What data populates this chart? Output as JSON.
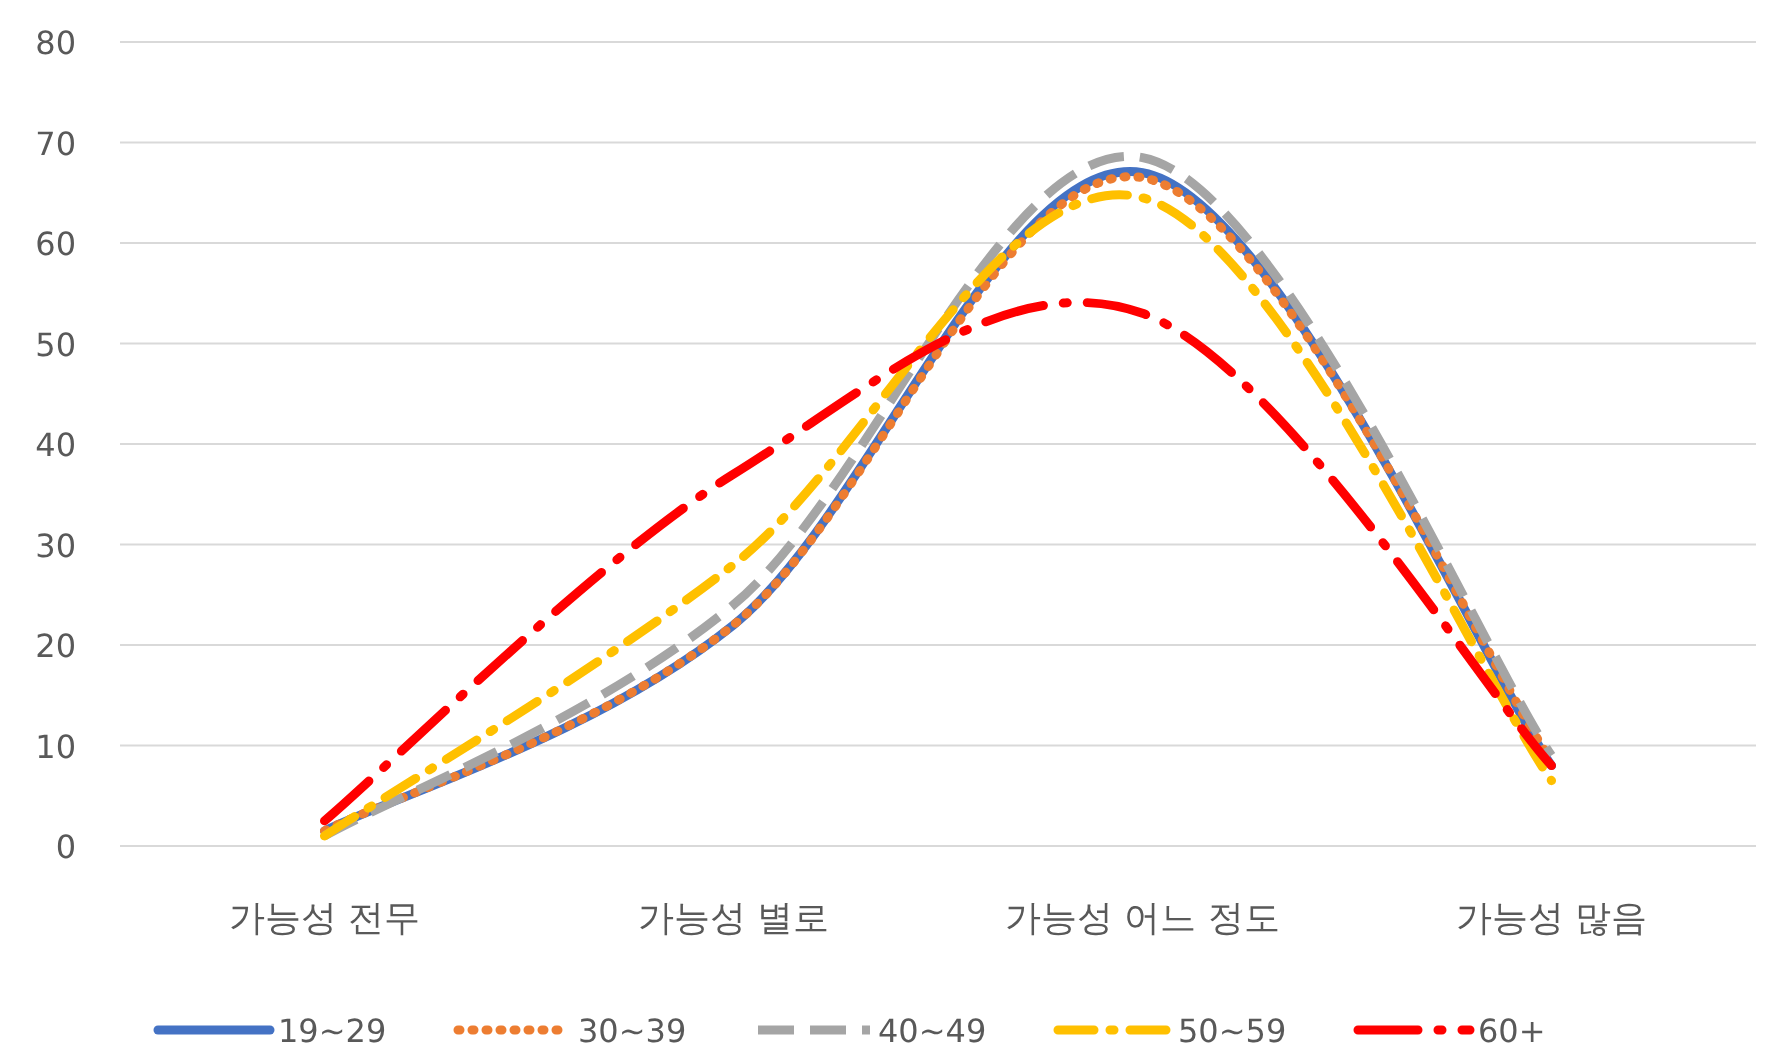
{
  "chart_data": {
    "type": "line",
    "categories": [
      "가능성 전무",
      "가능성 별로",
      "가능성 어느 정도",
      "가능성 많음"
    ],
    "series": [
      {
        "name": "19~29",
        "color": "#4472c4",
        "line_style": "solid",
        "values": [
          1.5,
          22,
          67,
          8
        ]
      },
      {
        "name": "30~39",
        "color": "#ed7d31",
        "line_style": "dotted",
        "values": [
          1.5,
          22,
          66.5,
          8.5
        ]
      },
      {
        "name": "40~49",
        "color": "#a5a5a5",
        "line_style": "dashed",
        "values": [
          1,
          24,
          68.5,
          9
        ]
      },
      {
        "name": "50~59",
        "color": "#ffc000",
        "line_style": "dashdot",
        "values": [
          1,
          28,
          64.5,
          6.5
        ]
      },
      {
        "name": "60+",
        "color": "#ff0000",
        "line_style": "longdashdot",
        "values": [
          2.5,
          37,
          53,
          8
        ]
      }
    ],
    "ylim": [
      0,
      80
    ],
    "yticks": [
      0,
      10,
      20,
      30,
      40,
      50,
      60,
      70,
      80
    ],
    "grid": "y",
    "legend": "bottom",
    "marker": "none"
  }
}
